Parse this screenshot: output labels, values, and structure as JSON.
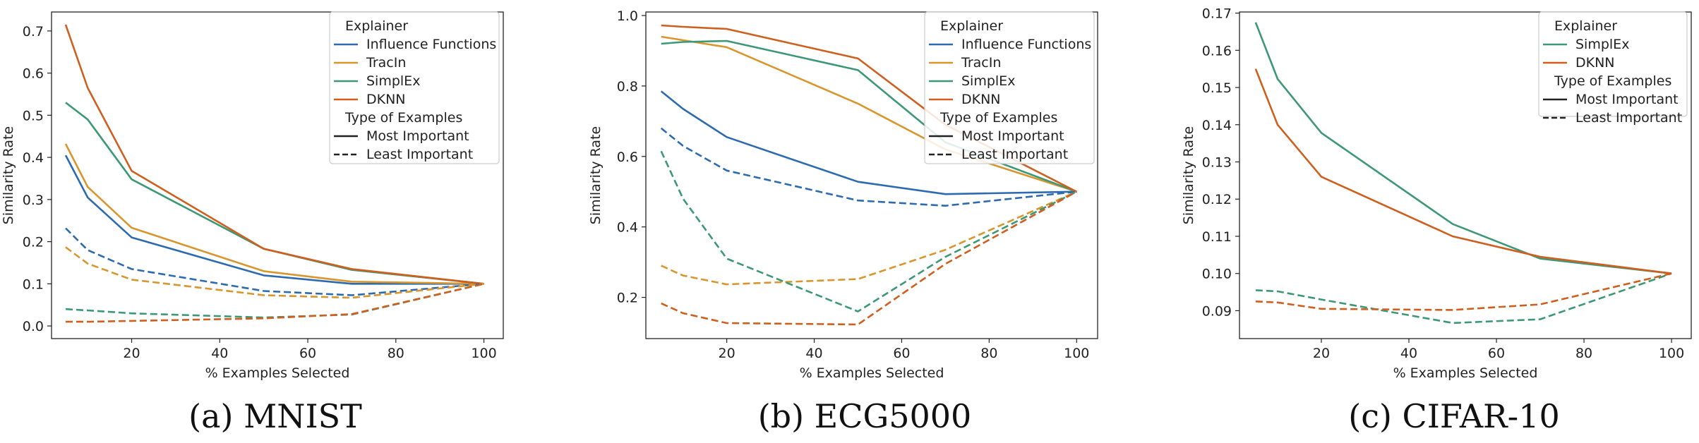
{
  "figure": {
    "captions": [
      "(a) MNIST",
      "(b) ECG5000",
      "(c) CIFAR-10"
    ]
  },
  "colors": {
    "Influence Functions": "#2d6bb0",
    "TracIn": "#d9952e",
    "SimplEx": "#3d9876",
    "DKNN": "#cf5f1f"
  },
  "chart_data": [
    {
      "type": "line",
      "xlabel": "% Examples Selected",
      "ylabel": "Similarity Rate",
      "xlim": [
        1.8,
        104.4
      ],
      "ylim": [
        -0.03,
        0.745
      ],
      "xticks": [
        20,
        40,
        60,
        80,
        100
      ],
      "yticks": [
        0.0,
        0.1,
        0.2,
        0.3,
        0.4,
        0.5,
        0.6,
        0.7
      ],
      "ytick_labels": [
        "0.0",
        "0.1",
        "0.2",
        "0.3",
        "0.4",
        "0.5",
        "0.6",
        "0.7"
      ],
      "x": [
        5,
        10,
        20,
        50,
        70,
        100
      ],
      "legend": {
        "position": "top-right",
        "title": "Explainer",
        "entries": [
          "Influence Functions",
          "TracIn",
          "SimplEx",
          "DKNN"
        ],
        "style_title": "Type of Examples",
        "style_entries": [
          "Most Important",
          "Least Important"
        ]
      },
      "series": [
        {
          "name": "Influence Functions",
          "type": "Most Important",
          "values": [
            0.405,
            0.305,
            0.21,
            0.12,
            0.1,
            0.1
          ]
        },
        {
          "name": "TracIn",
          "type": "Most Important",
          "values": [
            0.432,
            0.33,
            0.233,
            0.13,
            0.105,
            0.1
          ]
        },
        {
          "name": "SimplEx",
          "type": "Most Important",
          "values": [
            0.53,
            0.49,
            0.348,
            0.183,
            0.133,
            0.1
          ]
        },
        {
          "name": "DKNN",
          "type": "Most Important",
          "values": [
            0.715,
            0.565,
            0.368,
            0.183,
            0.135,
            0.1
          ]
        },
        {
          "name": "Influence Functions",
          "type": "Least Important",
          "values": [
            0.232,
            0.18,
            0.135,
            0.083,
            0.073,
            0.1
          ]
        },
        {
          "name": "TracIn",
          "type": "Least Important",
          "values": [
            0.187,
            0.148,
            0.11,
            0.073,
            0.067,
            0.1
          ]
        },
        {
          "name": "SimplEx",
          "type": "Least Important",
          "values": [
            0.04,
            0.037,
            0.03,
            0.02,
            0.027,
            0.1
          ]
        },
        {
          "name": "DKNN",
          "type": "Least Important",
          "values": [
            0.01,
            0.01,
            0.012,
            0.018,
            0.028,
            0.1
          ]
        }
      ]
    },
    {
      "type": "line",
      "xlabel": "% Examples Selected",
      "ylabel": "Similarity Rate",
      "xlim": [
        1.5,
        104.8
      ],
      "ylim": [
        0.083,
        1.01
      ],
      "xticks": [
        20,
        40,
        60,
        80,
        100
      ],
      "yticks": [
        0.2,
        0.4,
        0.6,
        0.8,
        1.0
      ],
      "ytick_labels": [
        "0.2",
        "0.4",
        "0.6",
        "0.8",
        "1.0"
      ],
      "x": [
        5,
        10,
        20,
        50,
        70,
        100
      ],
      "legend": {
        "position": "top-right",
        "title": "Explainer",
        "entries": [
          "Influence Functions",
          "TracIn",
          "SimplEx",
          "DKNN"
        ],
        "style_title": "Type of Examples",
        "style_entries": [
          "Most Important",
          "Least Important"
        ]
      },
      "series": [
        {
          "name": "Influence Functions",
          "type": "Most Important",
          "values": [
            0.785,
            0.735,
            0.655,
            0.528,
            0.493,
            0.5
          ]
        },
        {
          "name": "TracIn",
          "type": "Most Important",
          "values": [
            0.94,
            0.93,
            0.91,
            0.75,
            0.62,
            0.5
          ]
        },
        {
          "name": "SimplEx",
          "type": "Most Important",
          "values": [
            0.92,
            0.925,
            0.928,
            0.845,
            0.64,
            0.5
          ]
        },
        {
          "name": "DKNN",
          "type": "Most Important",
          "values": [
            0.972,
            0.968,
            0.962,
            0.878,
            0.69,
            0.5
          ]
        },
        {
          "name": "Influence Functions",
          "type": "Least Important",
          "values": [
            0.68,
            0.63,
            0.56,
            0.475,
            0.46,
            0.5
          ]
        },
        {
          "name": "TracIn",
          "type": "Least Important",
          "values": [
            0.29,
            0.262,
            0.237,
            0.252,
            0.335,
            0.5
          ]
        },
        {
          "name": "SimplEx",
          "type": "Least Important",
          "values": [
            0.615,
            0.48,
            0.31,
            0.16,
            0.315,
            0.5
          ]
        },
        {
          "name": "DKNN",
          "type": "Least Important",
          "values": [
            0.183,
            0.155,
            0.127,
            0.123,
            0.295,
            0.5
          ]
        }
      ]
    },
    {
      "type": "line",
      "xlabel": "% Examples Selected",
      "ylabel": "Similarity Rate",
      "xlim": [
        1.3,
        104.5
      ],
      "ylim": [
        0.0825,
        0.1703
      ],
      "xticks": [
        20,
        40,
        60,
        80,
        100
      ],
      "yticks": [
        0.09,
        0.1,
        0.11,
        0.12,
        0.13,
        0.14,
        0.15,
        0.16,
        0.17
      ],
      "ytick_labels": [
        "0.09",
        "0.10",
        "0.11",
        "0.12",
        "0.13",
        "0.14",
        "0.15",
        "0.16",
        "0.17"
      ],
      "x": [
        5,
        10,
        20,
        50,
        70,
        100
      ],
      "legend": {
        "position": "top-right",
        "title": "Explainer",
        "entries": [
          "SimplEx",
          "DKNN"
        ],
        "style_title": "Type of Examples",
        "style_entries": [
          "Most Important",
          "Least Important"
        ]
      },
      "series": [
        {
          "name": "SimplEx",
          "type": "Most Important",
          "values": [
            0.1675,
            0.1523,
            0.1378,
            0.1133,
            0.104,
            0.1
          ]
        },
        {
          "name": "DKNN",
          "type": "Most Important",
          "values": [
            0.155,
            0.14,
            0.126,
            0.11,
            0.1045,
            0.1
          ]
        },
        {
          "name": "SimplEx",
          "type": "Least Important",
          "values": [
            0.0955,
            0.0952,
            0.093,
            0.0867,
            0.0877,
            0.1
          ]
        },
        {
          "name": "DKNN",
          "type": "Least Important",
          "values": [
            0.0925,
            0.0922,
            0.0905,
            0.0902,
            0.0917,
            0.1
          ]
        }
      ]
    }
  ]
}
